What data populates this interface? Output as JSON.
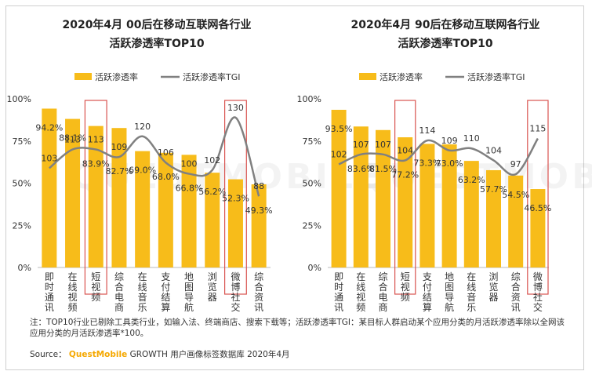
{
  "chart_data": [
    {
      "type": "bar+line",
      "title_line1": "2020年4月 00后在移动互联网各行业",
      "title_line2": "活跃渗透率TOP10",
      "legend": [
        "活跃渗透率",
        "活跃渗透率TGI"
      ],
      "categories": [
        "即时通讯",
        "在线视频",
        "短视频",
        "综合电商",
        "在线音乐",
        "支付结算",
        "地图导航",
        "浏览器",
        "微博社交",
        "综合资讯"
      ],
      "bar_values": [
        94.2,
        88.1,
        83.9,
        82.7,
        69.0,
        68.0,
        66.8,
        56.2,
        52.3,
        49.3
      ],
      "bar_labels": [
        "94.2%",
        "88.1%",
        "83.9%",
        "82.7%",
        "69.0%",
        "68.0%",
        "66.8%",
        "56.2%",
        "52.3%",
        "49.3%"
      ],
      "line_values": [
        103,
        113,
        113,
        109,
        120,
        106,
        100,
        102,
        130,
        88
      ],
      "y_ticks": [
        "100%",
        "75%",
        "50%",
        "25%",
        "0%"
      ],
      "ylim": [
        0,
        100
      ],
      "highlighted": [
        "短视频",
        "微博社交"
      ]
    },
    {
      "type": "bar+line",
      "title_line1": "2020年4月 90后在移动互联网各行业",
      "title_line2": "活跃渗透率TOP10",
      "legend": [
        "活跃渗透率",
        "活跃渗透率TGI"
      ],
      "categories": [
        "即时通讯",
        "在线视频",
        "综合电商",
        "短视频",
        "支付结算",
        "地图导航",
        "在线音乐",
        "浏览器",
        "综合资讯",
        "微博社交"
      ],
      "bar_values": [
        93.5,
        83.6,
        81.5,
        77.2,
        73.3,
        73.0,
        63.2,
        57.7,
        54.5,
        46.5
      ],
      "bar_labels": [
        "93.5%",
        "83.6%",
        "81.5%",
        "77.2%",
        "73.3%",
        "73.0%",
        "63.2%",
        "57.7%",
        "54.5%",
        "46.5%"
      ],
      "line_values": [
        102,
        107,
        107,
        104,
        114,
        109,
        110,
        104,
        97,
        115
      ],
      "y_ticks": [
        "100%",
        "75%",
        "50%",
        "25%",
        "0%"
      ],
      "ylim": [
        0,
        100
      ],
      "highlighted": [
        "短视频",
        "微博社交"
      ]
    }
  ],
  "colors": {
    "bar": "#f7bc1a",
    "line": "#808080",
    "highlight": "#d9534f",
    "axis": "#bbbbbb"
  },
  "footnote": "注：TOP10行业已剔除工具类行业，如输入法、终端商店、搜索下载等；活跃渗透率TGI：某目标人群启动某个应用分类的月活跃渗透率除以全网该应用分类的月活跃渗透率*100。",
  "source": {
    "prefix": "Source：",
    "brand": "QuestMobile",
    "rest": " GROWTH 用户画像标签数据库 2020年4月"
  },
  "watermark": "QUESTMOBILE"
}
